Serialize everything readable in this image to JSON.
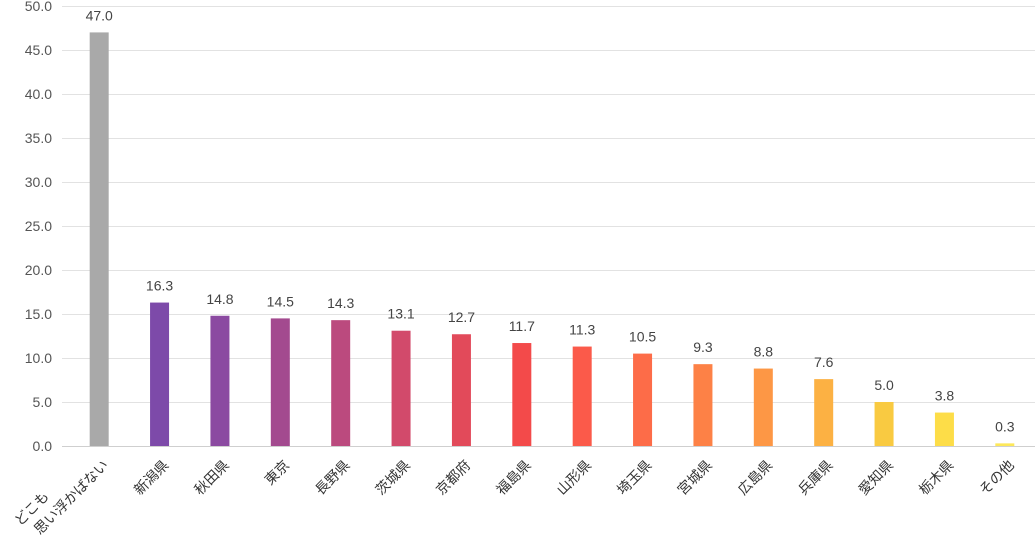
{
  "chart_data": {
    "type": "bar",
    "categories": [
      [
        "どこも",
        "思い浮かばない"
      ],
      [
        "新潟県"
      ],
      [
        "秋田県"
      ],
      [
        "東京"
      ],
      [
        "長野県"
      ],
      [
        "茨城県"
      ],
      [
        "京都府"
      ],
      [
        "福島県"
      ],
      [
        "山形県"
      ],
      [
        "埼玉県"
      ],
      [
        "宮城県"
      ],
      [
        "広島県"
      ],
      [
        "兵庫県"
      ],
      [
        "愛知県"
      ],
      [
        "栃木県"
      ],
      [
        "その他"
      ]
    ],
    "values": [
      47.0,
      16.3,
      14.8,
      14.5,
      14.3,
      13.1,
      12.7,
      11.7,
      11.3,
      10.5,
      9.3,
      8.8,
      7.6,
      5.0,
      3.8,
      0.3
    ],
    "data_labels": [
      "47.0",
      "16.3",
      "14.8",
      "14.5",
      "14.3",
      "13.1",
      "12.7",
      "11.7",
      "11.3",
      "10.5",
      "9.3",
      "8.8",
      "7.6",
      "5.0",
      "3.8",
      "0.3"
    ],
    "ylim": [
      0,
      50
    ],
    "yticks": [
      0,
      5,
      10,
      15,
      20,
      25,
      30,
      35,
      40,
      45,
      50
    ],
    "ytick_labels": [
      "0.0",
      "5.0",
      "10.0",
      "15.0",
      "20.0",
      "25.0",
      "30.0",
      "35.0",
      "40.0",
      "45.0",
      "50.0"
    ],
    "grid": true,
    "colors": [
      "#a9a9a9",
      "#7d4aa9",
      "#8b4aa1",
      "#a34a8f",
      "#bb4a7e",
      "#d24a6b",
      "#e24a5a",
      "#f34a4a",
      "#fb5a4a",
      "#fd6c48",
      "#fd8146",
      "#fd9745",
      "#fcb143",
      "#f9ca41",
      "#fddd48",
      "#fde85a"
    ]
  }
}
